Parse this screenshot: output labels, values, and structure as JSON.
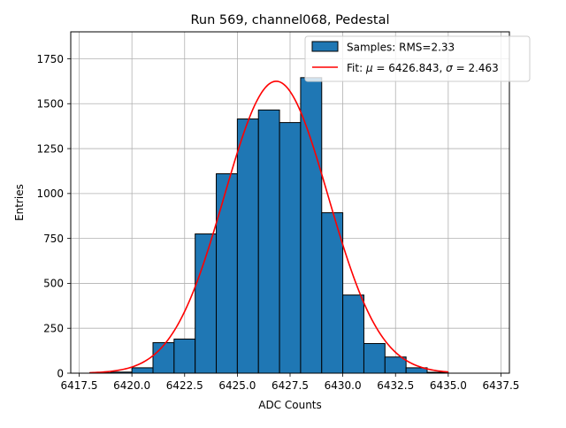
{
  "chart_data": {
    "type": "bar",
    "title": "Run 569, channel068, Pedestal",
    "xlabel": "ADC Counts",
    "ylabel": "Entries",
    "xlim": [
      6417.1,
      6437.9
    ],
    "ylim": [
      0,
      1900
    ],
    "xticks": [
      6417.5,
      6420.0,
      6422.5,
      6425.0,
      6427.5,
      6430.0,
      6432.5,
      6435.0,
      6437.5
    ],
    "xtick_labels": [
      "6417.5",
      "6420.0",
      "6422.5",
      "6425.0",
      "6427.5",
      "6430.0",
      "6432.5",
      "6435.0",
      "6437.5"
    ],
    "yticks": [
      0,
      250,
      500,
      750,
      1000,
      1250,
      1500,
      1750
    ],
    "ytick_labels": [
      "0",
      "250",
      "500",
      "750",
      "1000",
      "1250",
      "1500",
      "1750"
    ],
    "grid": true,
    "legend_position": "top-right",
    "histogram": {
      "name": "Samples: RMS=2.33",
      "color": "#1f77b4",
      "edge_color": "#000000",
      "bin_edges": [
        6418,
        6419,
        6420,
        6421,
        6422,
        6423,
        6424,
        6425,
        6426,
        6427,
        6428,
        6429,
        6430,
        6431,
        6432,
        6433,
        6434,
        6435
      ],
      "counts": [
        2,
        6,
        30,
        170,
        190,
        775,
        1110,
        1415,
        1465,
        1395,
        1645,
        893,
        435,
        165,
        90,
        30,
        5
      ]
    },
    "fit": {
      "name": "Fit: μ = 6426.843, σ = 2.463",
      "legend_prefix": "Fit: ",
      "legend_mu_symbol": "μ",
      "legend_mu_value": " = 6426.843, ",
      "legend_sigma_symbol": "σ",
      "legend_sigma_value": " = 2.463",
      "color": "#ff0000",
      "mu": 6426.843,
      "sigma": 2.463,
      "amplitude": 1625,
      "x_range": [
        6418,
        6435
      ]
    }
  }
}
